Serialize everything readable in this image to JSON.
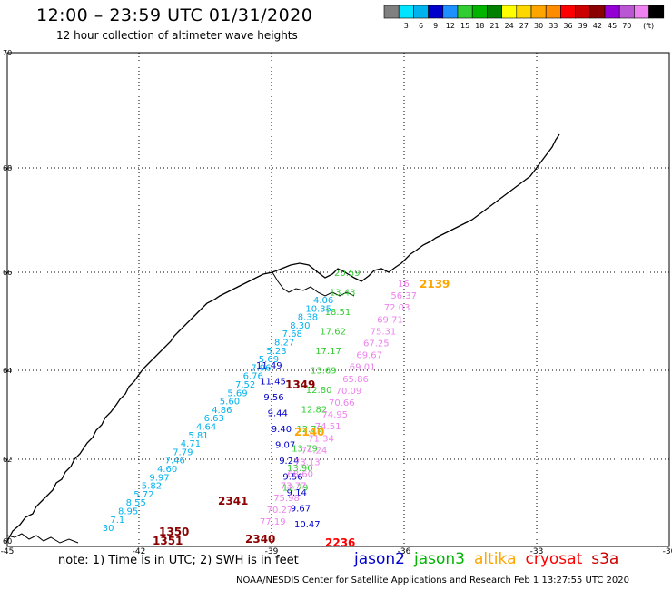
{
  "title": "12:00 – 23:59 UTC 01/31/2020",
  "subtitle": "12 hour collection of altimeter wave heights",
  "colorbar": {
    "colors": [
      "#808080",
      "#00e5ff",
      "#00b2ee",
      "#0000cd",
      "#1e90ff",
      "#32cd32",
      "#00b400",
      "#008000",
      "#ffff00",
      "#ffd700",
      "#ffa500",
      "#ff8c00",
      "#ff0000",
      "#cd0000",
      "#8b0000",
      "#9400d3",
      "#ba55d3",
      "#ee82ee",
      "#000000"
    ],
    "labels": [
      "3",
      "6",
      "9",
      "12",
      "15",
      "18",
      "21",
      "24",
      "27",
      "30",
      "33",
      "36",
      "39",
      "42",
      "45",
      "70"
    ],
    "unit": "(ft)"
  },
  "axes": {
    "lon_labels": [
      "-45",
      "-42",
      "-39",
      "-36",
      "-33",
      "-30"
    ],
    "lat_labels": [
      "70",
      "68",
      "66",
      "64",
      "62",
      "60"
    ]
  },
  "passes": [
    {
      "id": "2139",
      "color": "#ffa500"
    },
    {
      "id": "1349",
      "color": "#8b0000"
    },
    {
      "id": "2140",
      "color": "#ffa500"
    },
    {
      "id": "2341",
      "color": "#8b0000"
    },
    {
      "id": "1350",
      "color": "#8b0000"
    },
    {
      "id": "1351",
      "color": "#8b0000"
    },
    {
      "id": "2340",
      "color": "#8b0000"
    },
    {
      "id": "2236",
      "color": "#ff0000"
    }
  ],
  "tracks": {
    "jason2_color": "#0000cd",
    "jason2": [
      "11.49",
      "11.45",
      "9.56",
      "9.44",
      "9.40",
      "9.07",
      "9.24",
      "9.56",
      "9.14",
      "9.67",
      "10.47"
    ],
    "jason3_color": "#32cd32",
    "jason3": [
      "20.59",
      "13.43",
      "18.51",
      "17.62",
      "17.17",
      "13.69",
      "12.80",
      "12.82",
      "12.79",
      "13.79",
      "13.90",
      "12.79"
    ],
    "cyan_color": "#00b2ee",
    "cyan": [
      "4.06",
      "10.35",
      "8.38",
      "8.30",
      "7.68",
      "8.27",
      "5.23",
      "5.69",
      "7.96",
      "6.76",
      "7.52",
      "5.69",
      "5.60",
      "4.86",
      "6.63",
      "4.64",
      "5.81",
      "4.71",
      "7.79",
      "7.46",
      "4.60",
      "9.97",
      "5.82",
      "5.72",
      "8.55",
      "8.95",
      "7.1",
      "30"
    ],
    "pink_color": "#ee82ee",
    "pink": [
      "16",
      "56.37",
      "72.03",
      "69.71",
      "75.31",
      "67.25",
      "69.67",
      "69.01",
      "65.86",
      "70.09",
      "70.66",
      "74.95",
      "74.51",
      "71.34",
      "74.24",
      "73.13",
      "68.60",
      "73.77",
      "75.98",
      "70.27",
      "77.19"
    ]
  },
  "note": "note:  1) Time is in UTC;  2) SWH is in feet",
  "satellites": [
    {
      "name": "jason2",
      "color": "#0000cd"
    },
    {
      "name": "jason3",
      "color": "#00b400"
    },
    {
      "name": "altika",
      "color": "#ffa500"
    },
    {
      "name": "cryosat",
      "color": "#ff0000"
    },
    {
      "name": "s3a",
      "color": "#cd0000"
    }
  ],
  "credit": "NOAA/NESDIS Center for Satellite Applications and Research    Feb  1 13:27:55 UTC 2020"
}
